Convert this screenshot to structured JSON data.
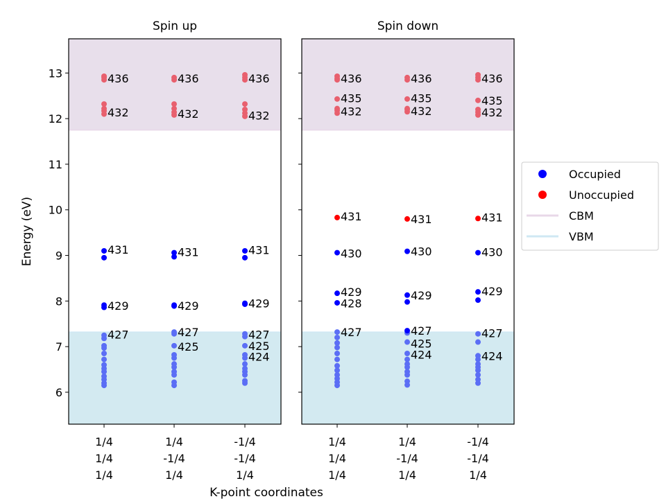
{
  "chart_data": {
    "type": "scatter",
    "ylabel": "Energy (eV)",
    "xlabel": "K-point coordinates",
    "ylim": [
      5.3,
      13.75
    ],
    "yticks": [
      6,
      7,
      8,
      9,
      10,
      11,
      12,
      13
    ],
    "categories": [
      [
        "1/4",
        "1/4",
        "1/4"
      ],
      [
        "1/4",
        "-1/4",
        "1/4"
      ],
      [
        "-1/4",
        "-1/4",
        "1/4"
      ]
    ],
    "cbm": 11.75,
    "vbm": 7.32,
    "colors": {
      "occupied": "#0000ff",
      "unoccupied": "#ff0000",
      "occupied_band": "#5b6ef5",
      "unoccupied_band": "#e8606e",
      "cbm_fill": "#e8dfeb",
      "vbm_fill": "#d3eaf1",
      "cbm_line": "#e8d8e8",
      "vbm_line": "#cfe8f3"
    },
    "legend": {
      "position": "center-right",
      "items": [
        {
          "label": "Occupied",
          "kind": "dot",
          "color": "#0000ff"
        },
        {
          "label": "Unoccupied",
          "kind": "dot",
          "color": "#ff0000"
        },
        {
          "label": "CBM",
          "kind": "line",
          "color": "#e8d8e8"
        },
        {
          "label": "VBM",
          "kind": "line",
          "color": "#cfe8f3"
        }
      ]
    },
    "panels": [
      {
        "title": "Spin up",
        "kpoints": [
          {
            "occupied": [
              6.15,
              6.2,
              6.28,
              6.35,
              6.45,
              6.52,
              6.6,
              6.72,
              6.85,
              6.97,
              7.02,
              7.18,
              7.25,
              7.86,
              7.91,
              8.95,
              9.1
            ],
            "unoccupied": [
              12.1,
              12.17,
              12.22,
              12.32,
              12.85,
              12.9,
              12.93
            ],
            "labels": [
              {
                "text": "436",
                "y": 12.88
              },
              {
                "text": "432",
                "y": 12.14
              },
              {
                "text": "431",
                "y": 9.13
              },
              {
                "text": "429",
                "y": 7.9
              },
              {
                "text": "427",
                "y": 7.27
              }
            ]
          },
          {
            "occupied": [
              6.15,
              6.22,
              6.38,
              6.45,
              6.55,
              6.62,
              6.75,
              6.82,
              7.02,
              7.28,
              7.32,
              7.89,
              7.91,
              8.97,
              9.06
            ],
            "unoccupied": [
              12.08,
              12.14,
              12.22,
              12.32,
              12.85,
              12.9
            ],
            "labels": [
              {
                "text": "436",
                "y": 12.88
              },
              {
                "text": "432",
                "y": 12.11
              },
              {
                "text": "431",
                "y": 9.08
              },
              {
                "text": "427",
                "y": 7.32
              },
              {
                "text": "429",
                "y": 7.9
              },
              {
                "text": "425",
                "y": 7.0
              }
            ]
          },
          {
            "occupied": [
              6.2,
              6.25,
              6.38,
              6.45,
              6.52,
              6.62,
              6.75,
              6.82,
              7.02,
              7.22,
              7.28,
              7.93,
              7.95,
              8.95,
              9.1
            ],
            "unoccupied": [
              12.05,
              12.12,
              12.2,
              12.32,
              12.85,
              12.9,
              12.96
            ],
            "labels": [
              {
                "text": "436",
                "y": 12.88
              },
              {
                "text": "432",
                "y": 12.07
              },
              {
                "text": "431",
                "y": 9.12
              },
              {
                "text": "429",
                "y": 7.95
              },
              {
                "text": "427",
                "y": 7.27
              },
              {
                "text": "425",
                "y": 7.02
              },
              {
                "text": "424",
                "y": 6.78
              }
            ]
          }
        ]
      },
      {
        "title": "Spin down",
        "kpoints": [
          {
            "occupied": [
              6.15,
              6.22,
              6.3,
              6.38,
              6.48,
              6.58,
              6.72,
              6.85,
              6.98,
              7.08,
              7.2,
              7.32,
              7.96,
              8.17,
              9.06
            ],
            "unoccupied": [
              9.83
            ],
            "band_unoccupied": [
              12.12,
              12.18,
              12.22,
              12.43,
              12.85,
              12.88,
              12.93
            ],
            "labels": [
              {
                "text": "436",
                "y": 12.88
              },
              {
                "text": "435",
                "y": 12.45
              },
              {
                "text": "432",
                "y": 12.16
              },
              {
                "text": "431",
                "y": 9.86
              },
              {
                "text": "430",
                "y": 9.05
              },
              {
                "text": "429",
                "y": 8.2
              },
              {
                "text": "428",
                "y": 7.95
              },
              {
                "text": "427",
                "y": 7.32
              }
            ]
          },
          {
            "occupied": [
              6.16,
              6.24,
              6.38,
              6.45,
              6.55,
              6.62,
              6.72,
              6.85,
              7.1,
              7.3,
              7.35,
              7.98,
              8.13,
              9.09
            ],
            "unoccupied": [
              9.8
            ],
            "band_unoccupied": [
              12.15,
              12.2,
              12.22,
              12.43,
              12.85,
              12.9
            ],
            "labels": [
              {
                "text": "436",
                "y": 12.88
              },
              {
                "text": "435",
                "y": 12.45
              },
              {
                "text": "432",
                "y": 12.17
              },
              {
                "text": "431",
                "y": 9.8
              },
              {
                "text": "430",
                "y": 9.09
              },
              {
                "text": "429",
                "y": 8.13
              },
              {
                "text": "427",
                "y": 7.35
              },
              {
                "text": "425",
                "y": 7.07
              },
              {
                "text": "424",
                "y": 6.83
              }
            ]
          },
          {
            "occupied": [
              6.2,
              6.28,
              6.38,
              6.48,
              6.55,
              6.62,
              6.72,
              6.8,
              7.1,
              7.28,
              8.02,
              8.2,
              9.06
            ],
            "unoccupied": [
              9.81
            ],
            "band_unoccupied": [
              12.08,
              12.14,
              12.2,
              12.4,
              12.85,
              12.9,
              12.96
            ],
            "labels": [
              {
                "text": "436",
                "y": 12.88
              },
              {
                "text": "435",
                "y": 12.4
              },
              {
                "text": "432",
                "y": 12.14
              },
              {
                "text": "431",
                "y": 9.84
              },
              {
                "text": "430",
                "y": 9.08
              },
              {
                "text": "429",
                "y": 8.22
              },
              {
                "text": "427",
                "y": 7.3
              },
              {
                "text": "424",
                "y": 6.8
              }
            ]
          }
        ]
      }
    ]
  }
}
